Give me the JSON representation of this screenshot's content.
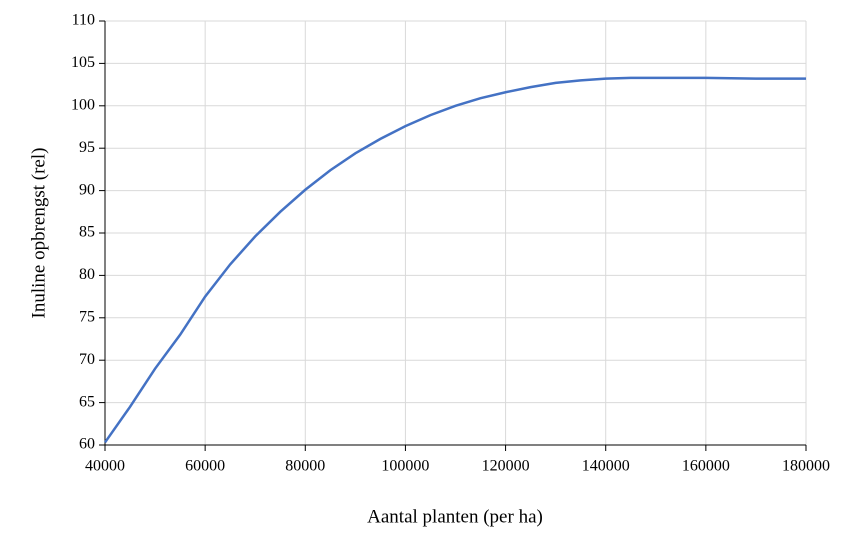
{
  "chart_data": {
    "type": "line",
    "x_label": "Aantal planten (per ha)",
    "y_label": "Inuline opbrengst (rel)",
    "x": [
      40000,
      45000,
      50000,
      55000,
      60000,
      65000,
      70000,
      75000,
      80000,
      85000,
      90000,
      95000,
      100000,
      105000,
      110000,
      115000,
      120000,
      125000,
      130000,
      135000,
      140000,
      145000,
      150000,
      160000,
      170000,
      180000
    ],
    "series": [
      {
        "name": "Inuline opbrengst",
        "color": "#4472c4",
        "values": [
          60.3,
          64.5,
          69,
          73,
          77.5,
          81.3,
          84.6,
          87.5,
          90.1,
          92.4,
          94.4,
          96.1,
          97.6,
          98.9,
          100,
          100.9,
          101.6,
          102.2,
          102.7,
          103.0,
          103.2,
          103.3,
          103.3,
          103.3,
          103.2,
          103.2
        ]
      }
    ],
    "xlim": [
      40000,
      180000
    ],
    "xticks": [
      40000,
      60000,
      80000,
      100000,
      120000,
      140000,
      160000,
      180000
    ],
    "ylim": [
      60,
      110
    ],
    "yticks": [
      60,
      65,
      70,
      75,
      80,
      85,
      90,
      95,
      100,
      105,
      110
    ],
    "grid": true
  }
}
